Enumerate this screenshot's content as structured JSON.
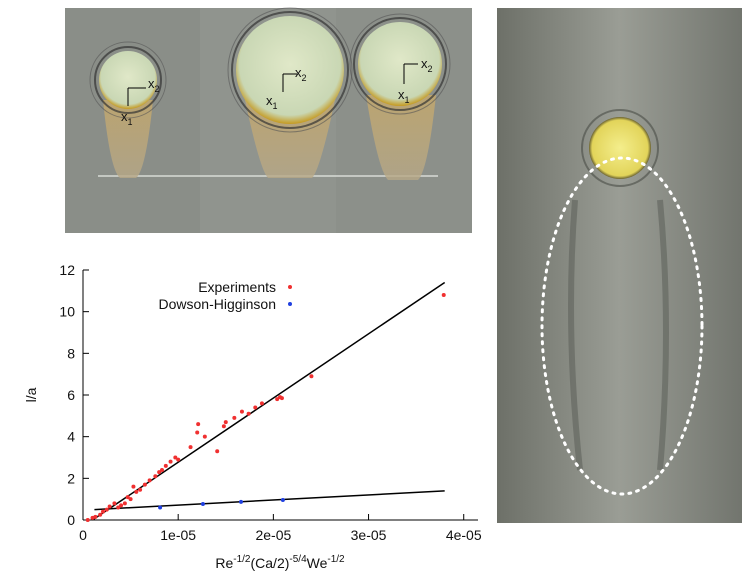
{
  "chart_data": {
    "type": "scatter",
    "xlabel_parts": [
      "Re",
      "-1/2",
      "(Ca/2)",
      "-5/4",
      "We",
      "-1/2"
    ],
    "ylabel": "l/a",
    "xlim": [
      0,
      4.15e-05
    ],
    "ylim": [
      0,
      12
    ],
    "xticks": [
      0,
      {
        "value": 1e-05,
        "label": "1e-05"
      },
      {
        "value": 2e-05,
        "label": "2e-05"
      },
      {
        "value": 3e-05,
        "label": "3e-05"
      },
      {
        "value": 4e-05,
        "label": "4e-05"
      }
    ],
    "yticks": [
      0,
      2,
      4,
      6,
      8,
      10,
      12
    ],
    "legend": "top-center",
    "series": [
      {
        "name": "Experiments",
        "color": "#f03030",
        "x": [
          5e-07,
          1e-06,
          1.3e-06,
          1.8e-06,
          2.1e-06,
          2.5e-06,
          2.8e-06,
          3.3e-06,
          3.7e-06,
          4e-06,
          4.4e-06,
          4.7e-06,
          5e-06,
          5.3e-06,
          5.6e-06,
          6e-06,
          6.5e-06,
          7e-06,
          7.6e-06,
          8e-06,
          8.3e-06,
          8.7e-06,
          9.2e-06,
          9.7e-06,
          1e-05,
          1.13e-05,
          1.2e-05,
          1.21e-05,
          1.28e-05,
          1.41e-05,
          1.48e-05,
          1.5e-05,
          1.59e-05,
          1.67e-05,
          1.74e-05,
          1.81e-05,
          1.88e-05,
          2.04e-05,
          2.07e-05,
          2.09e-05,
          2.4e-05,
          3.79e-05
        ],
        "values": [
          0,
          0.1,
          0.15,
          0.25,
          0.4,
          0.5,
          0.65,
          0.8,
          0.6,
          0.7,
          0.8,
          1.1,
          1.0,
          1.6,
          1.35,
          1.45,
          1.7,
          1.9,
          2.1,
          2.3,
          2.4,
          2.6,
          2.8,
          3.0,
          2.9,
          3.5,
          4.2,
          4.6,
          4.0,
          3.3,
          4.5,
          4.7,
          4.9,
          5.2,
          5.1,
          5.4,
          5.6,
          5.8,
          5.9,
          5.85,
          6.9,
          10.8
        ]
      },
      {
        "name": "Dowson-Higginson",
        "color": "#2040e0",
        "x": [
          8.1e-06,
          1.26e-05,
          1.66e-05,
          2.1e-05
        ],
        "values": [
          0.6,
          0.77,
          0.87,
          0.96
        ]
      }
    ],
    "fits": [
      {
        "color": "#000000",
        "x": [
          1e-06,
          3.8e-05
        ],
        "y": [
          0,
          11.4
        ]
      },
      {
        "color": "#000000",
        "x": [
          1.2e-06,
          3.8e-05
        ],
        "y": [
          0.5,
          1.4
        ]
      }
    ]
  },
  "photos": {
    "top_panels": [
      {
        "labels": [
          [
            "x",
            "2"
          ],
          [
            "x",
            "1"
          ]
        ]
      },
      {
        "labels": [
          [
            "x",
            "2"
          ],
          [
            "x",
            "1"
          ]
        ]
      },
      {
        "labels": [
          [
            "x",
            "2"
          ],
          [
            "x",
            "1"
          ]
        ]
      }
    ]
  }
}
